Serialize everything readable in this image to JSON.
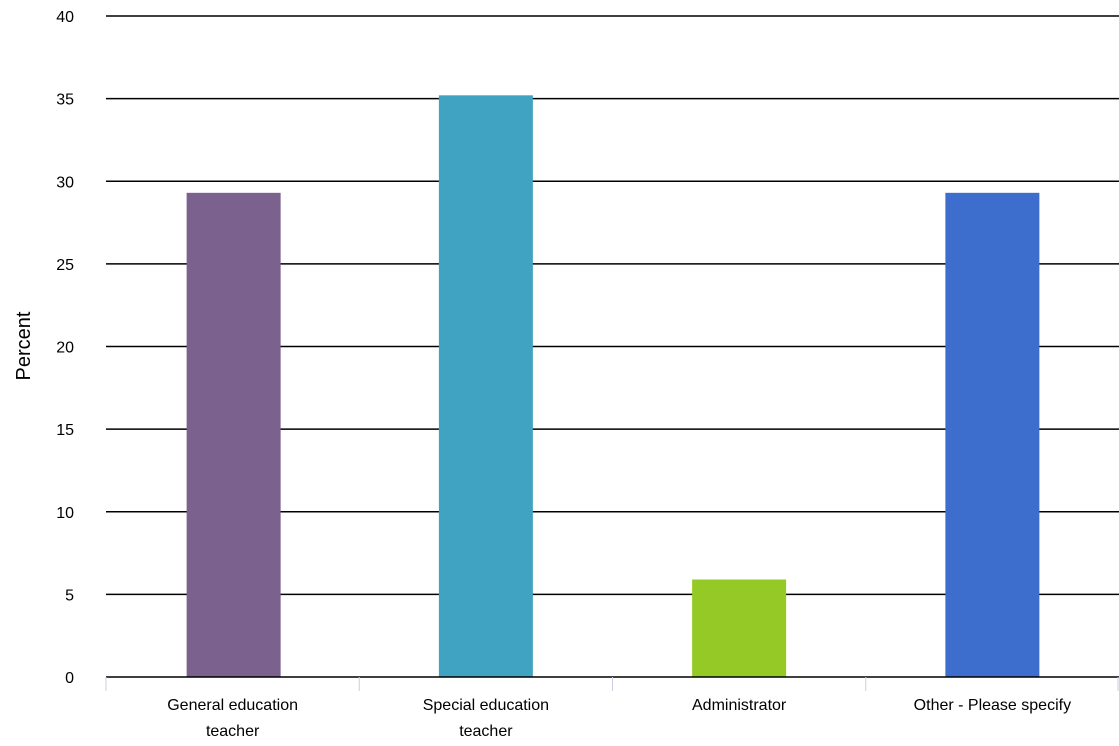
{
  "chart_data": {
    "type": "bar",
    "title": "",
    "xlabel": "",
    "ylabel": "Percent",
    "ylim": [
      0,
      40
    ],
    "yticks": [
      0,
      5,
      10,
      15,
      20,
      25,
      30,
      35,
      40
    ],
    "grid": true,
    "legend": "none",
    "categories": [
      [
        "General education",
        "teacher"
      ],
      [
        "Special education",
        "teacher"
      ],
      [
        "Administrator"
      ],
      [
        "Other - Please specify"
      ]
    ],
    "values": [
      29.3,
      35.2,
      5.9,
      29.3
    ],
    "colors": [
      "#7b618e",
      "#40a3c1",
      "#95c926",
      "#3d6ecd"
    ]
  }
}
